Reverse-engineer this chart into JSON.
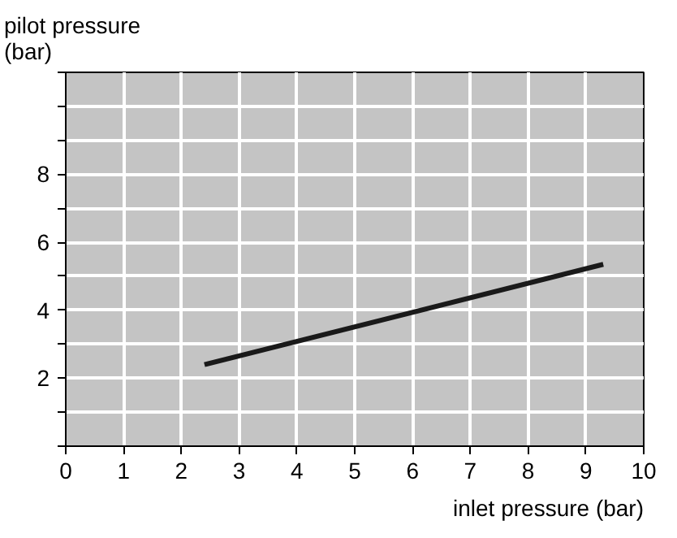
{
  "chart_data": {
    "type": "line",
    "xlabel": "inlet pressure (bar)",
    "ylabel": "pilot pressure\n(bar)",
    "series": [
      {
        "color": "#1a1a1a",
        "x": [
          2.4,
          9.3
        ],
        "values": [
          2.4,
          5.35
        ]
      }
    ],
    "xlim": [
      0,
      10
    ],
    "xticks": [
      0,
      1,
      2,
      3,
      4,
      5,
      6,
      7,
      8,
      9,
      10
    ],
    "ylim": [
      0,
      11
    ],
    "yticks": [
      {
        "value": 0,
        "label": null
      },
      {
        "value": 1,
        "label": null
      },
      2,
      {
        "value": 3,
        "label": null
      },
      4,
      {
        "value": 5,
        "label": null
      },
      6,
      {
        "value": 7,
        "label": null
      },
      8,
      {
        "value": 9,
        "label": null
      },
      {
        "value": 10,
        "label": null
      },
      {
        "value": 11,
        "label": null
      }
    ],
    "grid": true,
    "marker": "none",
    "line_style": "solid"
  }
}
